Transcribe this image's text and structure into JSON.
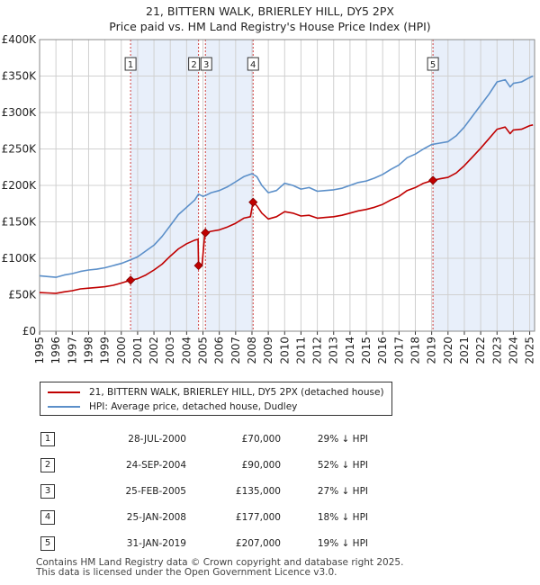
{
  "chart_title": {
    "line1": "21, BITTERN WALK, BRIERLEY HILL, DY5 2PX",
    "line2": "Price paid vs. HM Land Registry's House Price Index (HPI)"
  },
  "colors": {
    "property": "#c00000",
    "hpi": "#5b8fc9",
    "shade": "#e8effa",
    "vline": "#d04040"
  },
  "legend": {
    "property_label": "21, BITTERN WALK, BRIERLEY HILL, DY5 2PX (detached house)",
    "hpi_label": "HPI: Average price, detached house, Dudley"
  },
  "chart_data": {
    "type": "line",
    "title": "21, BITTERN WALK, BRIERLEY HILL, DY5 2PX — Price paid vs. HM Land Registry's House Price Index (HPI)",
    "xlim": [
      1995,
      2025.3
    ],
    "ylim": [
      0,
      400000
    ],
    "x_ticks": [
      "1995",
      "1996",
      "1997",
      "1998",
      "1999",
      "2000",
      "2001",
      "2002",
      "2003",
      "2004",
      "2005",
      "2006",
      "2007",
      "2008",
      "2009",
      "2010",
      "2011",
      "2012",
      "2013",
      "2014",
      "2015",
      "2016",
      "2017",
      "2018",
      "2019",
      "2020",
      "2021",
      "2022",
      "2023",
      "2024",
      "2025"
    ],
    "y_ticks": [
      {
        "value": 0,
        "label": "£0"
      },
      {
        "value": 50000,
        "label": "£50K"
      },
      {
        "value": 100000,
        "label": "£100K"
      },
      {
        "value": 150000,
        "label": "£150K"
      },
      {
        "value": 200000,
        "label": "£200K"
      },
      {
        "value": 250000,
        "label": "£250K"
      },
      {
        "value": 300000,
        "label": "£300K"
      },
      {
        "value": 350000,
        "label": "£350K"
      },
      {
        "value": 400000,
        "label": "£400K"
      }
    ],
    "series": [
      {
        "name": "HPI: Average price, detached house, Dudley",
        "points": [
          [
            1995.0,
            76000
          ],
          [
            1995.5,
            75000
          ],
          [
            1996.0,
            74000
          ],
          [
            1996.5,
            77000
          ],
          [
            1997.0,
            79000
          ],
          [
            1997.5,
            82000
          ],
          [
            1998.0,
            84000
          ],
          [
            1998.5,
            85000
          ],
          [
            1999.0,
            87000
          ],
          [
            1999.5,
            90000
          ],
          [
            2000.0,
            93000
          ],
          [
            2000.58,
            98000
          ],
          [
            2001.0,
            102000
          ],
          [
            2001.5,
            110000
          ],
          [
            2002.0,
            118000
          ],
          [
            2002.5,
            130000
          ],
          [
            2003.0,
            145000
          ],
          [
            2003.5,
            160000
          ],
          [
            2004.0,
            170000
          ],
          [
            2004.5,
            180000
          ],
          [
            2004.73,
            188000
          ],
          [
            2005.0,
            185000
          ],
          [
            2005.15,
            186000
          ],
          [
            2005.5,
            190000
          ],
          [
            2006.0,
            193000
          ],
          [
            2006.5,
            198000
          ],
          [
            2007.0,
            205000
          ],
          [
            2007.5,
            212000
          ],
          [
            2008.0,
            216000
          ],
          [
            2008.3,
            212000
          ],
          [
            2008.6,
            200000
          ],
          [
            2009.0,
            190000
          ],
          [
            2009.5,
            193000
          ],
          [
            2010.0,
            203000
          ],
          [
            2010.5,
            200000
          ],
          [
            2011.0,
            195000
          ],
          [
            2011.5,
            197000
          ],
          [
            2012.0,
            192000
          ],
          [
            2012.5,
            193000
          ],
          [
            2013.0,
            194000
          ],
          [
            2013.5,
            196000
          ],
          [
            2014.0,
            200000
          ],
          [
            2014.5,
            204000
          ],
          [
            2015.0,
            206000
          ],
          [
            2015.5,
            210000
          ],
          [
            2016.0,
            215000
          ],
          [
            2016.5,
            222000
          ],
          [
            2017.0,
            228000
          ],
          [
            2017.5,
            238000
          ],
          [
            2018.0,
            243000
          ],
          [
            2018.5,
            250000
          ],
          [
            2019.0,
            256000
          ],
          [
            2019.5,
            258000
          ],
          [
            2020.0,
            260000
          ],
          [
            2020.5,
            268000
          ],
          [
            2021.0,
            280000
          ],
          [
            2021.5,
            295000
          ],
          [
            2022.0,
            310000
          ],
          [
            2022.5,
            325000
          ],
          [
            2023.0,
            342000
          ],
          [
            2023.5,
            345000
          ],
          [
            2023.8,
            335000
          ],
          [
            2024.0,
            340000
          ],
          [
            2024.5,
            342000
          ],
          [
            2025.0,
            348000
          ],
          [
            2025.2,
            350000
          ]
        ]
      },
      {
        "name": "21, BITTERN WALK, BRIERLEY HILL, DY5 2PX (detached house)",
        "points": [
          [
            1995.0,
            53000
          ],
          [
            1995.5,
            52500
          ],
          [
            1996.0,
            52000
          ],
          [
            1996.5,
            54000
          ],
          [
            1997.0,
            55500
          ],
          [
            1997.5,
            58000
          ],
          [
            1998.0,
            59000
          ],
          [
            1998.5,
            60000
          ],
          [
            1999.0,
            61000
          ],
          [
            1999.5,
            63000
          ],
          [
            2000.0,
            66000
          ],
          [
            2000.57,
            70000
          ],
          [
            2001.0,
            72000
          ],
          [
            2001.5,
            77000
          ],
          [
            2002.0,
            84000
          ],
          [
            2002.5,
            92000
          ],
          [
            2003.0,
            103000
          ],
          [
            2003.5,
            113000
          ],
          [
            2004.0,
            120000
          ],
          [
            2004.5,
            125000
          ],
          [
            2004.7,
            126000
          ],
          [
            2004.73,
            90000
          ],
          [
            2004.9,
            90000
          ],
          [
            2004.95,
            92000
          ],
          [
            2005.1,
            130000
          ],
          [
            2005.15,
            135000
          ],
          [
            2005.5,
            137000
          ],
          [
            2006.0,
            139000
          ],
          [
            2006.5,
            143000
          ],
          [
            2007.0,
            148000
          ],
          [
            2007.5,
            155000
          ],
          [
            2007.9,
            157000
          ],
          [
            2008.07,
            177000
          ],
          [
            2008.3,
            172000
          ],
          [
            2008.6,
            162000
          ],
          [
            2009.0,
            154000
          ],
          [
            2009.5,
            157000
          ],
          [
            2010.0,
            164000
          ],
          [
            2010.5,
            162000
          ],
          [
            2011.0,
            158000
          ],
          [
            2011.5,
            159000
          ],
          [
            2012.0,
            155000
          ],
          [
            2012.5,
            156000
          ],
          [
            2013.0,
            157000
          ],
          [
            2013.5,
            159000
          ],
          [
            2014.0,
            162000
          ],
          [
            2014.5,
            165000
          ],
          [
            2015.0,
            167000
          ],
          [
            2015.5,
            170000
          ],
          [
            2016.0,
            174000
          ],
          [
            2016.5,
            180000
          ],
          [
            2017.0,
            185000
          ],
          [
            2017.5,
            193000
          ],
          [
            2018.0,
            197000
          ],
          [
            2018.5,
            203000
          ],
          [
            2019.08,
            207000
          ],
          [
            2019.5,
            209000
          ],
          [
            2020.0,
            211000
          ],
          [
            2020.5,
            217000
          ],
          [
            2021.0,
            227000
          ],
          [
            2021.5,
            239000
          ],
          [
            2022.0,
            251000
          ],
          [
            2022.5,
            264000
          ],
          [
            2023.0,
            277000
          ],
          [
            2023.5,
            280000
          ],
          [
            2023.8,
            271000
          ],
          [
            2024.0,
            276000
          ],
          [
            2024.5,
            277000
          ],
          [
            2025.0,
            282000
          ],
          [
            2025.2,
            283000
          ]
        ]
      }
    ],
    "sales": [
      {
        "label": "1",
        "x": 2000.57,
        "price": 70000
      },
      {
        "label": "2",
        "x": 2004.73,
        "price": 90000
      },
      {
        "label": "3",
        "x": 2005.15,
        "price": 135000
      },
      {
        "label": "4",
        "x": 2008.07,
        "price": 177000
      },
      {
        "label": "5",
        "x": 2019.08,
        "price": 207000
      }
    ],
    "shaded_ranges": [
      [
        2000.57,
        2004.73
      ],
      [
        2005.15,
        2008.07
      ],
      [
        2019.08,
        2025.3
      ]
    ]
  },
  "table": [
    {
      "num": "1",
      "date": "28-JUL-2000",
      "price": "£70,000",
      "diff": "29% ↓ HPI"
    },
    {
      "num": "2",
      "date": "24-SEP-2004",
      "price": "£90,000",
      "diff": "52% ↓ HPI"
    },
    {
      "num": "3",
      "date": "25-FEB-2005",
      "price": "£135,000",
      "diff": "27% ↓ HPI"
    },
    {
      "num": "4",
      "date": "25-JAN-2008",
      "price": "£177,000",
      "diff": "18% ↓ HPI"
    },
    {
      "num": "5",
      "date": "31-JAN-2019",
      "price": "£207,000",
      "diff": "19% ↓ HPI"
    }
  ],
  "footer": {
    "line1": "Contains HM Land Registry data © Crown copyright and database right 2025.",
    "line2": "This data is licensed under the Open Government Licence v3.0."
  }
}
